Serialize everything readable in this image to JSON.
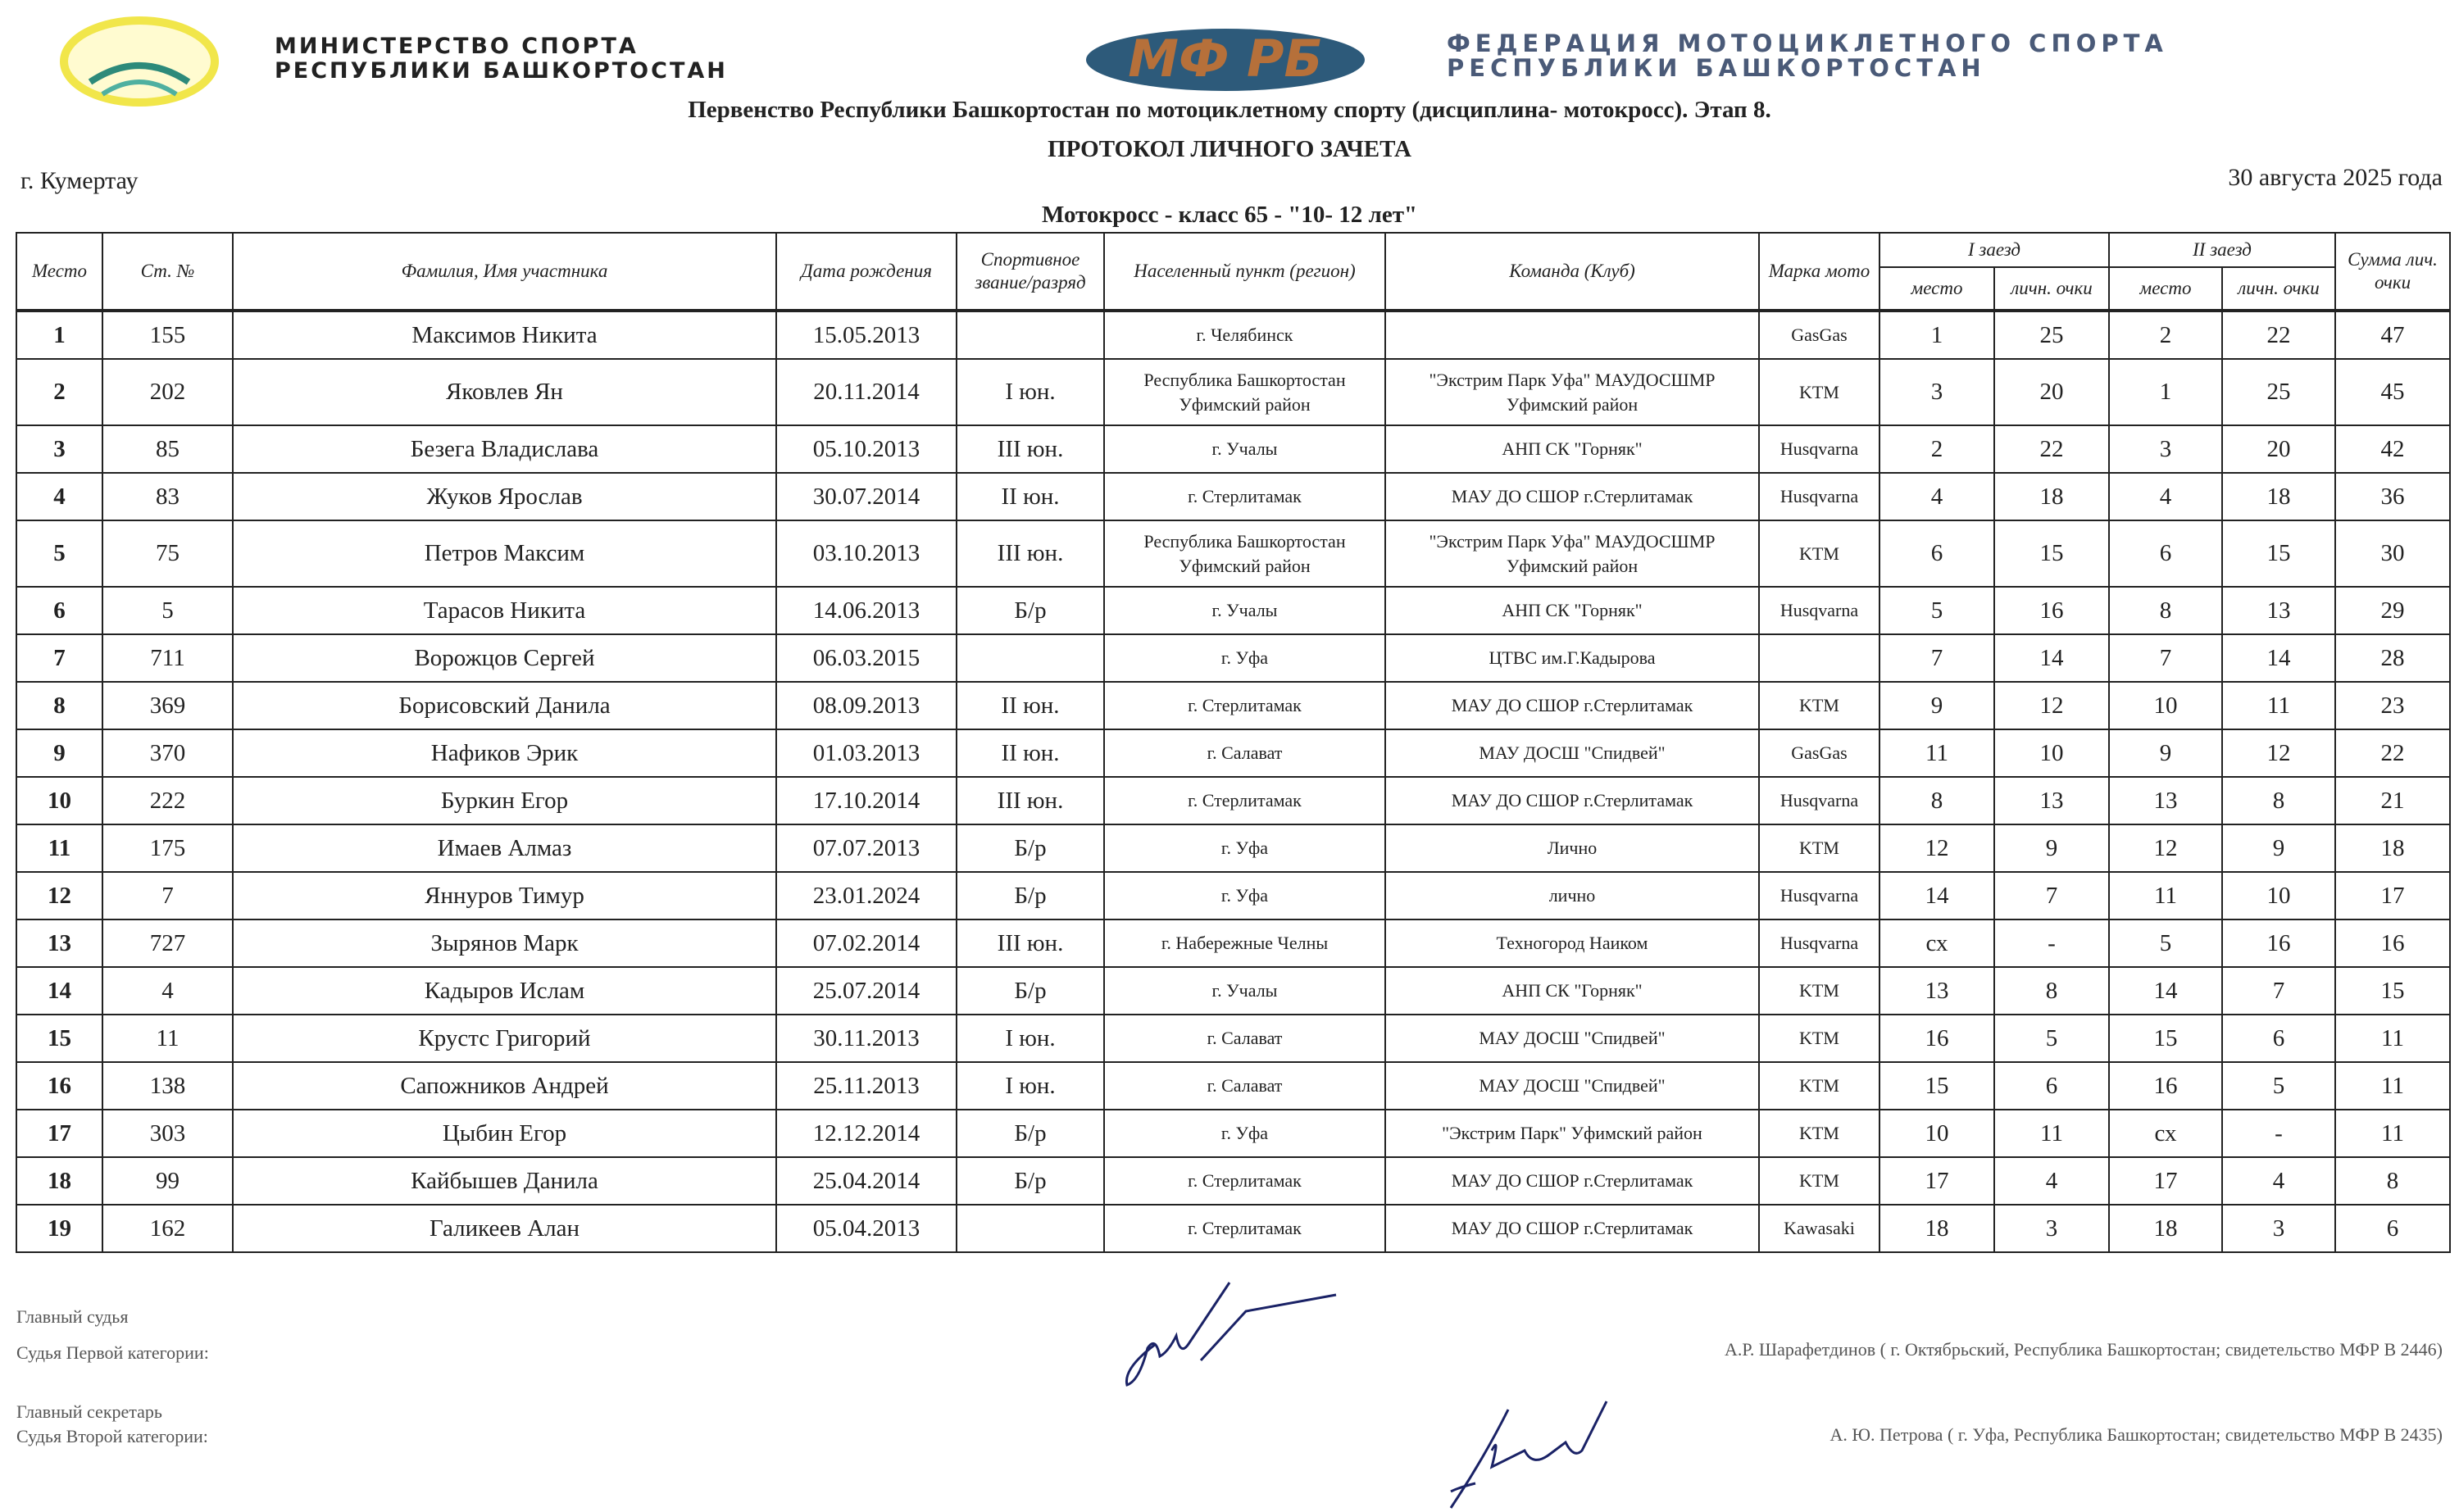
{
  "header": {
    "ministry": [
      "МИНИСТЕРСТВО СПОРТА",
      "РЕСПУБЛИКИ БАШКОРТОСТАН"
    ],
    "federation": [
      "ФЕДЕРАЦИЯ МОТОЦИКЛЕТНОГО СПОРТА",
      "РЕСПУБЛИКИ БАШКОРТОСТАН"
    ],
    "logo_text": "МФ РБ",
    "event_title": "Первенство Республики Башкортостан по мотоциклетному спорту (дисциплина- мотокросс). Этап 8.",
    "protocol_title": "ПРОТОКОЛ ЛИЧНОГО ЗАЧЕТА",
    "city": "г. Кумертау",
    "date": "30 августа 2025 года",
    "class_title": "Мотокросс - класс 65 - \"10- 12 лет\""
  },
  "table": {
    "columns": {
      "place": "Место",
      "number": "Ст. №",
      "name": "Фамилия, Имя участника",
      "birth": "Дата рождения",
      "rank": "Спортивное звание/разряд",
      "city": "Населенный пункт (регион)",
      "team": "Команда (Клуб)",
      "moto": "Марка мото",
      "race1": "I заезд",
      "race2": "II заезд",
      "sub_place": "место",
      "sub_points": "личн. очки",
      "total": "Сумма лич. очки"
    },
    "rows": [
      [
        "1",
        "155",
        "Максимов Никита",
        "15.05.2013",
        "",
        "г. Челябинск",
        "",
        "GasGas",
        "1",
        "25",
        "2",
        "22",
        "47"
      ],
      [
        "2",
        "202",
        "Яковлев Ян",
        "20.11.2014",
        "I юн.",
        "Республика Башкортостан Уфимский район",
        "\"Экстрим Парк Уфа\" МАУДОСШМР Уфимский район",
        "KTM",
        "3",
        "20",
        "1",
        "25",
        "45"
      ],
      [
        "3",
        "85",
        "Безега Владислава",
        "05.10.2013",
        "III юн.",
        "г. Учалы",
        "АНП СК \"Горняк\"",
        "Husqvarna",
        "2",
        "22",
        "3",
        "20",
        "42"
      ],
      [
        "4",
        "83",
        "Жуков Ярослав",
        "30.07.2014",
        "II юн.",
        "г. Стерлитамак",
        "МАУ ДО СШОР г.Стерлитамак",
        "Husqvarna",
        "4",
        "18",
        "4",
        "18",
        "36"
      ],
      [
        "5",
        "75",
        "Петров Максим",
        "03.10.2013",
        "III юн.",
        "Республика Башкортостан Уфимский район",
        "\"Экстрим Парк Уфа\" МАУДОСШМР Уфимский район",
        "KTM",
        "6",
        "15",
        "6",
        "15",
        "30"
      ],
      [
        "6",
        "5",
        "Тарасов Никита",
        "14.06.2013",
        "Б/р",
        "г. Учалы",
        "АНП СК \"Горняк\"",
        "Husqvarna",
        "5",
        "16",
        "8",
        "13",
        "29"
      ],
      [
        "7",
        "711",
        "Ворожцов Сергей",
        "06.03.2015",
        "",
        "г. Уфа",
        "ЦТВС им.Г.Кадырова",
        "",
        "7",
        "14",
        "7",
        "14",
        "28"
      ],
      [
        "8",
        "369",
        "Борисовский Данила",
        "08.09.2013",
        "II юн.",
        "г. Стерлитамак",
        "МАУ ДО СШОР г.Стерлитамак",
        "KTM",
        "9",
        "12",
        "10",
        "11",
        "23"
      ],
      [
        "9",
        "370",
        "Нафиков Эрик",
        "01.03.2013",
        "II юн.",
        "г. Салават",
        "МАУ ДОСШ \"Спидвей\"",
        "GasGas",
        "11",
        "10",
        "9",
        "12",
        "22"
      ],
      [
        "10",
        "222",
        "Буркин Егор",
        "17.10.2014",
        "III юн.",
        "г. Стерлитамак",
        "МАУ ДО СШОР г.Стерлитамак",
        "Husqvarna",
        "8",
        "13",
        "13",
        "8",
        "21"
      ],
      [
        "11",
        "175",
        "Имаев Алмаз",
        "07.07.2013",
        "Б/р",
        "г. Уфа",
        "Лично",
        "KTM",
        "12",
        "9",
        "12",
        "9",
        "18"
      ],
      [
        "12",
        "7",
        "Яннуров Тимур",
        "23.01.2024",
        "Б/р",
        "г. Уфа",
        "лично",
        "Husqvarna",
        "14",
        "7",
        "11",
        "10",
        "17"
      ],
      [
        "13",
        "727",
        "Зырянов Марк",
        "07.02.2014",
        "III юн.",
        "г. Набережные Челны",
        "Техногород Наиком",
        "Husqvarna",
        "сх",
        "-",
        "5",
        "16",
        "16"
      ],
      [
        "14",
        "4",
        "Кадыров Ислам",
        "25.07.2014",
        "Б/р",
        "г. Учалы",
        "АНП СК \"Горняк\"",
        "KTM",
        "13",
        "8",
        "14",
        "7",
        "15"
      ],
      [
        "15",
        "11",
        "Крустс Григорий",
        "30.11.2013",
        "I юн.",
        "г. Салават",
        "МАУ ДОСШ \"Спидвей\"",
        "KTM",
        "16",
        "5",
        "15",
        "6",
        "11"
      ],
      [
        "16",
        "138",
        "Сапожников Андрей",
        "25.11.2013",
        "I юн.",
        "г. Салават",
        "МАУ ДОСШ \"Спидвей\"",
        "KTM",
        "15",
        "6",
        "16",
        "5",
        "11"
      ],
      [
        "17",
        "303",
        "Цыбин Егор",
        "12.12.2014",
        "Б/р",
        "г. Уфа",
        "\"Экстрим Парк\" Уфимский район",
        "KTM",
        "10",
        "11",
        "сх",
        "-",
        "11"
      ],
      [
        "18",
        "99",
        "Кайбышев Данила",
        "25.04.2014",
        "Б/р",
        "г. Стерлитамак",
        "МАУ ДО СШОР г.Стерлитамак",
        "KTM",
        "17",
        "4",
        "17",
        "4",
        "8"
      ],
      [
        "19",
        "162",
        "Галикеев Алан",
        "05.04.2013",
        "",
        "г. Стерлитамак",
        "МАУ ДО СШОР г.Стерлитамак",
        "Kawasaki",
        "18",
        "3",
        "18",
        "3",
        "6"
      ]
    ]
  },
  "footer": {
    "chief_judge_label": "Главный судья",
    "chief_judge_category": "Судья Первой категории:",
    "chief_judge_name": "А.Р. Шарафетдинов ( г. Октябрьский, Республика Башкортостан; свидетельство МФР В 2446)",
    "secretary_label": "Главный секретарь",
    "secretary_category": "Судья Второй категории:",
    "secretary_name": "А. Ю. Петрова ( г. Уфа, Республика Башкортостан; свидетельство МФР В 2435)"
  }
}
